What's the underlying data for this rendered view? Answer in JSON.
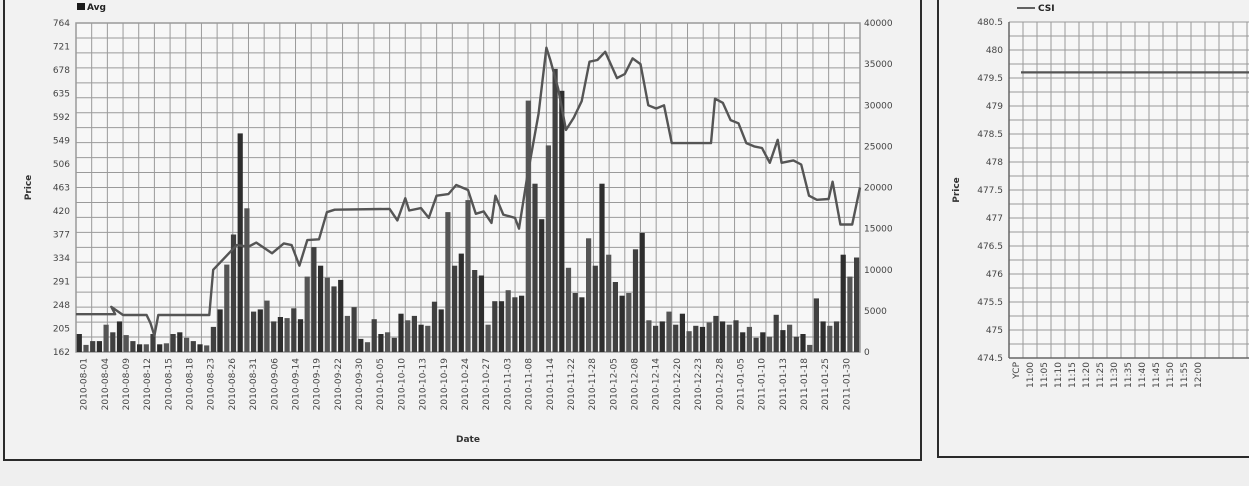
{
  "chart_data": [
    {
      "type": "bar",
      "legend": [
        "Avg"
      ],
      "xlabel": "Date",
      "ylabel": "Price",
      "ylim": [
        162,
        764
      ],
      "y_ticks": [
        162,
        205,
        248,
        291,
        334,
        377,
        420,
        463,
        506,
        549,
        592,
        635,
        678,
        721,
        764
      ],
      "y2lim": [
        0,
        40000
      ],
      "y2_ticks": [
        0,
        5000,
        10000,
        15000,
        20000,
        25000,
        30000,
        35000,
        40000
      ],
      "grid": true,
      "x_tick_labels": [
        "2010-08-01",
        "2010-08-04",
        "2010-08-09",
        "2010-08-12",
        "2010-08-15",
        "2010-08-18",
        "2010-08-23",
        "2010-08-26",
        "2010-08-31",
        "2010-09-06",
        "2010-09-14",
        "2010-09-19",
        "2010-09-22",
        "2010-09-30",
        "2010-10-05",
        "2010-10-10",
        "2010-10-13",
        "2010-10-19",
        "2010-10-24",
        "2010-10-27",
        "2010-11-03",
        "2010-11-08",
        "2010-11-14",
        "2010-11-22",
        "2010-11-28",
        "2010-12-05",
        "2010-12-08",
        "2010-12-14",
        "2010-12-20",
        "2010-12-23",
        "2010-12-28",
        "2011-01-05",
        "2011-01-10",
        "2011-01-13",
        "2011-01-18",
        "2011-01-25",
        "2011-01-30"
      ],
      "bars": [
        195,
        175,
        182,
        182,
        212,
        198,
        218,
        193,
        182,
        176,
        176,
        195,
        176,
        178,
        195,
        198,
        188,
        182,
        176,
        174,
        208,
        240,
        322,
        377,
        562,
        425,
        236,
        240,
        256,
        218,
        226,
        224,
        242,
        222,
        300,
        354,
        320,
        298,
        282,
        294,
        228,
        244,
        186,
        180,
        222,
        195,
        198,
        188,
        232,
        220,
        228,
        212,
        210,
        254,
        240,
        418,
        320,
        342,
        440,
        312,
        302,
        212,
        255,
        255,
        275,
        262,
        265,
        622,
        470,
        405,
        540,
        680,
        640,
        316,
        270,
        262,
        370,
        320,
        470,
        340,
        290,
        265,
        270,
        350,
        380,
        220,
        210,
        218,
        236,
        212,
        232,
        200,
        210,
        208,
        216,
        228,
        218,
        212,
        220,
        198,
        208,
        188,
        198,
        190,
        230,
        202,
        212,
        190,
        195,
        175,
        260,
        218,
        210,
        218,
        340,
        300,
        335
      ]
    },
    {
      "type": "line",
      "legend": [
        "CSI"
      ],
      "ylabel": "Price",
      "ylim": [
        474.5,
        480.5
      ],
      "y_ticks": [
        474.5,
        475,
        475.5,
        476,
        476.5,
        477,
        477.5,
        478,
        478.5,
        479,
        479.5,
        480,
        480.5
      ],
      "x_tick_labels": [
        "YCP",
        "11:00",
        "11:05",
        "11:10",
        "11:15",
        "11:20",
        "11:25",
        "11:30",
        "11:35",
        "11:40",
        "11:45",
        "11:50",
        "11:55",
        "12:00"
      ],
      "values": [
        479.6,
        479.6,
        479.6,
        479.6,
        479.6,
        479.6,
        479.6,
        479.6,
        479.6,
        479.6,
        479.6,
        479.6,
        479.6,
        479.6
      ],
      "grid": true
    }
  ],
  "colors": {
    "grid": "#9a9a9a",
    "bar_fill": "#4a4a4a",
    "line": "#555555",
    "border": "#2a2a2a"
  }
}
